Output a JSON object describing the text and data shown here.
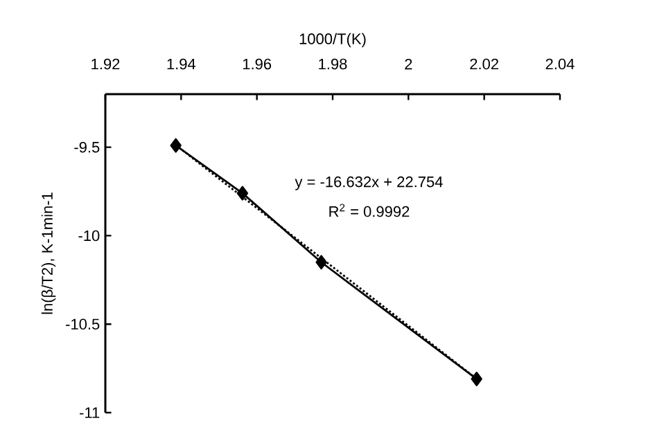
{
  "chart_data": {
    "type": "line",
    "xlabel": "1000/T(K)",
    "ylabel": "ln(β/T2), K-1min-1",
    "x": [
      1.9386,
      1.9562,
      1.977,
      2.018
    ],
    "series": [
      {
        "color": "#000000",
        "marker": "diamond",
        "line_style": "solid",
        "values": [
          -9.49,
          -9.76,
          -10.15,
          -10.81
        ]
      },
      {
        "type": "line",
        "color": "#000000",
        "marker": "none",
        "line_style": "dotted",
        "x": [
          1.9386,
          2.018
        ],
        "values": [
          -9.488,
          -10.809
        ]
      }
    ],
    "xlim": [
      1.92,
      2.04
    ],
    "xticks": [
      1.92,
      1.94,
      1.96,
      1.98,
      2,
      2.02,
      2.04
    ],
    "ylim": [
      -11,
      -9.2
    ],
    "yticks": [
      -11,
      -10.5,
      -10,
      -9.5
    ],
    "annotations": [
      "y = -16.632x + 22.754",
      "R$^{2}$ = 0.9992"
    ]
  }
}
